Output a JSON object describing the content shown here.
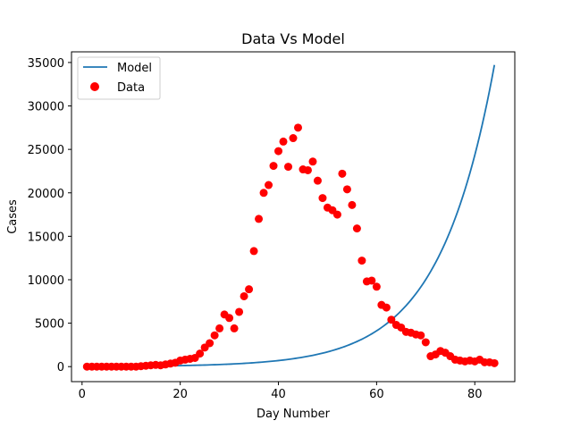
{
  "chart_data": {
    "type": "line",
    "title": "Data Vs Model",
    "xlabel": "Day Number",
    "ylabel": "Cases",
    "xlim": [
      -2.15,
      88.15
    ],
    "ylim": [
      -1727,
      36226
    ],
    "x_ticks": [
      0,
      20,
      40,
      60,
      80
    ],
    "y_ticks": [
      0,
      5000,
      10000,
      15000,
      20000,
      25000,
      30000,
      35000
    ],
    "legend": {
      "position": "upper-left",
      "entries": [
        "Model",
        "Data"
      ]
    },
    "grid": false,
    "series": [
      {
        "name": "Model",
        "kind": "line",
        "color": "#1f77b4",
        "model": {
          "form": "exponential",
          "a": 20.0,
          "b": 0.0888,
          "x_start": 1,
          "x_end": 84
        }
      },
      {
        "name": "Data",
        "kind": "scatter",
        "color": "#ff0000",
        "x": [
          1,
          2,
          3,
          4,
          5,
          6,
          7,
          8,
          9,
          10,
          11,
          12,
          13,
          14,
          15,
          16,
          17,
          18,
          19,
          20,
          21,
          22,
          23,
          24,
          25,
          26,
          27,
          28,
          29,
          30,
          31,
          32,
          33,
          34,
          35,
          36,
          37,
          38,
          39,
          40,
          41,
          42,
          43,
          44,
          45,
          46,
          47,
          48,
          49,
          50,
          51,
          52,
          53,
          54,
          55,
          56,
          57,
          58,
          59,
          60,
          61,
          62,
          63,
          64,
          65,
          66,
          67,
          68,
          69,
          70,
          71,
          72,
          73,
          74,
          75,
          76,
          77,
          78,
          79,
          80,
          81,
          82,
          83,
          84
        ],
        "y": [
          0,
          0,
          0,
          0,
          0,
          0,
          0,
          0,
          0,
          0,
          0,
          50,
          100,
          150,
          200,
          150,
          250,
          350,
          450,
          700,
          800,
          900,
          1000,
          1500,
          2200,
          2700,
          3600,
          4400,
          6000,
          5600,
          4400,
          6300,
          8100,
          8900,
          13300,
          17000,
          20000,
          20900,
          23100,
          24800,
          25900,
          23000,
          26300,
          27500,
          22700,
          22600,
          23600,
          21400,
          19400,
          18300,
          18000,
          17500,
          22200,
          20400,
          18600,
          15900,
          12200,
          9800,
          9900,
          9200,
          7100,
          6800,
          5400,
          4800,
          4500,
          4000,
          3900,
          3700,
          3600,
          2800,
          1200,
          1400,
          1800,
          1600,
          1200,
          800,
          700,
          600,
          700,
          600,
          800,
          500,
          500,
          400
        ]
      }
    ]
  }
}
